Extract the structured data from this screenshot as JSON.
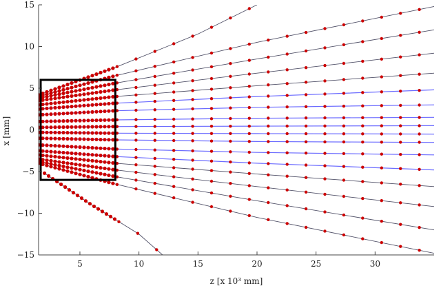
{
  "chart_data": {
    "type": "line",
    "title": "",
    "xlabel": "z [x 10³ mm]",
    "ylabel": "x [mm]",
    "xlim": [
      1.5,
      35
    ],
    "ylim": [
      -15,
      15
    ],
    "xticks": [
      5,
      10,
      15,
      20,
      25,
      30
    ],
    "yticks": [
      -15,
      -10,
      -5,
      0,
      5,
      10,
      15
    ],
    "grid": false,
    "legend": "none",
    "colors": {
      "trajectories_dark": "#33334d",
      "trajectories_core": "#3a3aff",
      "particle_markers": "#cc0000",
      "highlight_box": "#000000"
    },
    "series": [
      {
        "x": [
          1.5,
          8,
          15,
          20
        ],
        "values": [
          4.2,
          7.5,
          11.5,
          15.0
        ]
      },
      {
        "x": [
          1.5,
          8,
          20,
          35
        ],
        "values": [
          4.0,
          6.5,
          10.5,
          14.8
        ]
      },
      {
        "x": [
          1.5,
          8,
          20,
          35
        ],
        "values": [
          3.8,
          5.6,
          8.5,
          12.0
        ]
      },
      {
        "x": [
          1.5,
          8,
          20,
          35
        ],
        "values": [
          3.5,
          4.8,
          6.8,
          9.2
        ]
      },
      {
        "x": [
          1.5,
          8,
          20,
          35
        ],
        "values": [
          3.0,
          4.0,
          5.3,
          6.8
        ]
      },
      {
        "x": [
          1.5,
          8,
          20,
          35
        ],
        "values": [
          2.5,
          3.2,
          4.0,
          4.8
        ]
      },
      {
        "x": [
          1.5,
          8,
          20,
          35
        ],
        "values": [
          1.8,
          2.3,
          2.7,
          3.0
        ]
      },
      {
        "x": [
          1.5,
          8,
          20,
          35
        ],
        "values": [
          1.0,
          1.2,
          1.4,
          1.5
        ]
      },
      {
        "x": [
          1.5,
          8,
          20,
          35
        ],
        "values": [
          0.3,
          0.4,
          0.45,
          0.5
        ]
      },
      {
        "x": [
          1.5,
          8,
          20,
          35
        ],
        "values": [
          -0.3,
          -0.4,
          -0.45,
          -0.5
        ]
      },
      {
        "x": [
          1.5,
          8,
          20,
          35
        ],
        "values": [
          -1.0,
          -1.2,
          -1.4,
          -1.5
        ]
      },
      {
        "x": [
          1.5,
          8,
          20,
          35
        ],
        "values": [
          -1.8,
          -2.3,
          -2.7,
          -3.0
        ]
      },
      {
        "x": [
          1.5,
          8,
          20,
          35
        ],
        "values": [
          -2.5,
          -3.2,
          -4.0,
          -4.8
        ]
      },
      {
        "x": [
          1.5,
          8,
          20,
          35
        ],
        "values": [
          -3.0,
          -4.0,
          -5.3,
          -6.8
        ]
      },
      {
        "x": [
          1.5,
          8,
          20,
          35
        ],
        "values": [
          -3.5,
          -4.8,
          -6.8,
          -9.2
        ]
      },
      {
        "x": [
          1.5,
          8,
          20,
          35
        ],
        "values": [
          -3.8,
          -5.6,
          -8.5,
          -12.0
        ]
      },
      {
        "x": [
          1.5,
          8,
          20,
          35
        ],
        "values": [
          -4.0,
          -6.5,
          -10.5,
          -14.8
        ]
      },
      {
        "x": [
          2.0,
          6,
          10,
          12
        ],
        "values": [
          -5.2,
          -9.0,
          -12.5,
          -15.0
        ]
      }
    ],
    "highlight_box": {
      "x": [
        1.5,
        8
      ],
      "y": [
        -6,
        6
      ]
    }
  }
}
